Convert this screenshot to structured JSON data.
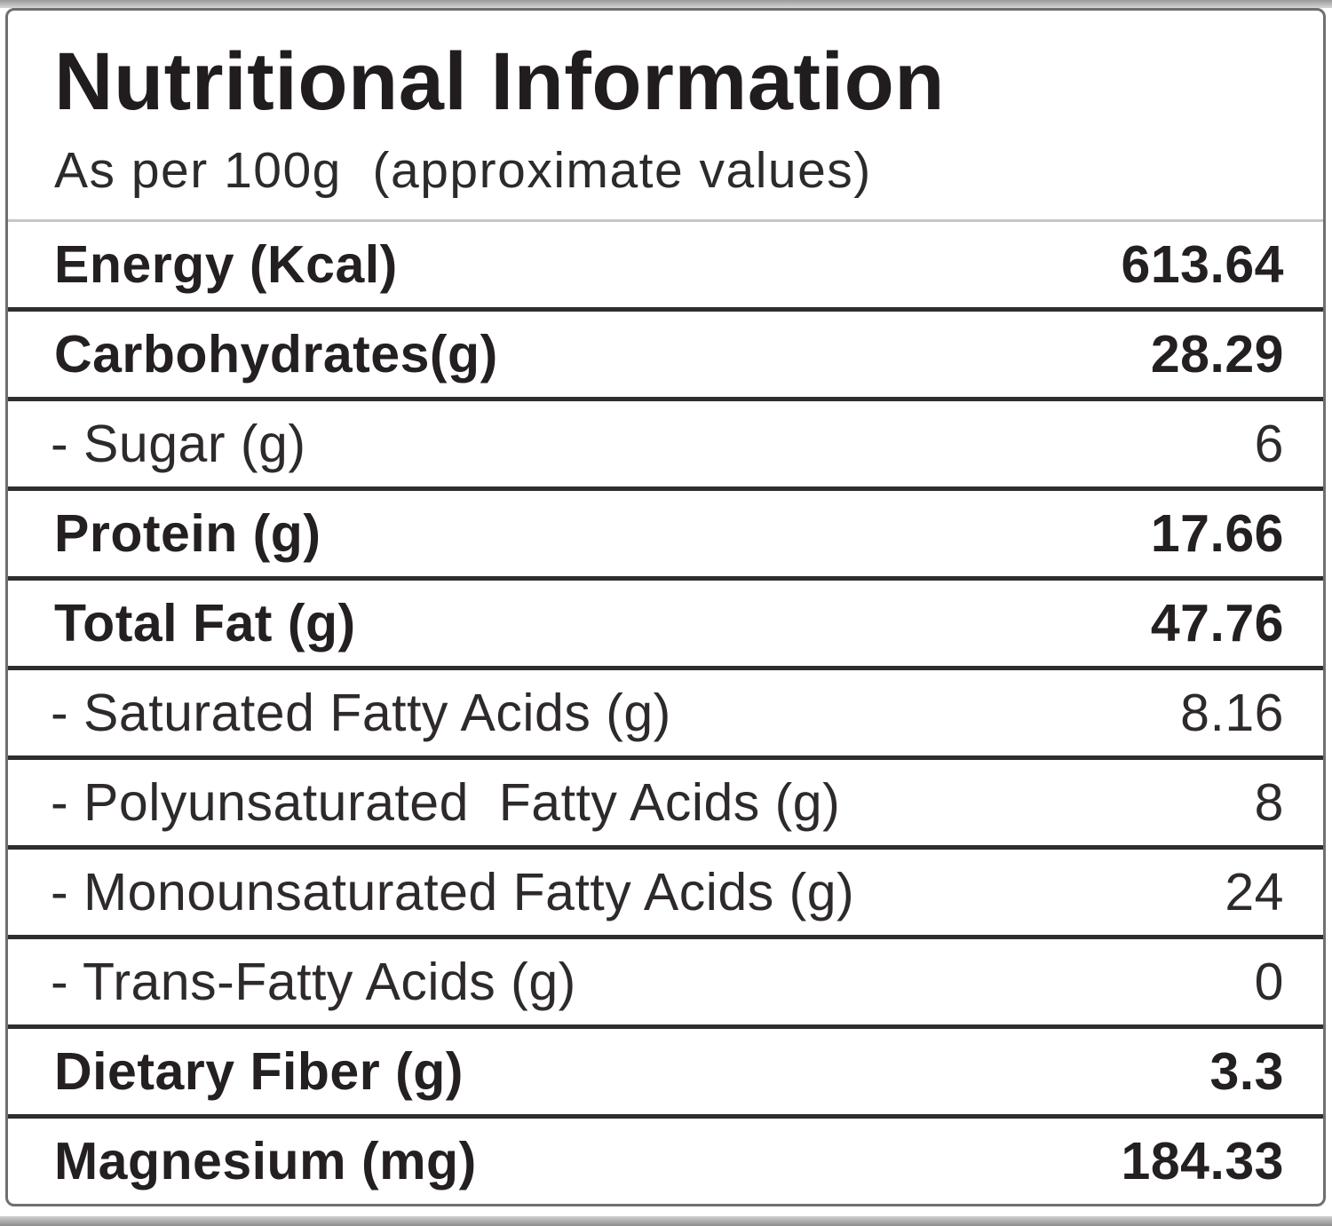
{
  "header": {
    "title": "Nutritional Information",
    "subtitle": "As per 100g  (approximate values)"
  },
  "table": {
    "rows": [
      {
        "label": "Energy (Kcal)",
        "value": "613.64",
        "style": "main"
      },
      {
        "label": "Carbohydrates(g)",
        "value": "28.29",
        "style": "main"
      },
      {
        "label": "- Sugar (g)",
        "value": "6",
        "style": "sub"
      },
      {
        "label": "Protein (g)",
        "value": "17.66",
        "style": "main"
      },
      {
        "label": "Total Fat (g)",
        "value": "47.76",
        "style": "main"
      },
      {
        "label": "- Saturated Fatty Acids (g)",
        "value": "8.16",
        "style": "sub"
      },
      {
        "label": "- Polyunsaturated  Fatty Acids (g)",
        "value": "8",
        "style": "sub"
      },
      {
        "label": "- Monounsaturated Fatty Acids (g)",
        "value": "24",
        "style": "sub"
      },
      {
        "label": "- Trans-Fatty Acids (g)",
        "value": "0",
        "style": "sub"
      },
      {
        "label": "Dietary Fiber (g)",
        "value": "3.3",
        "style": "main"
      },
      {
        "label": "Magnesium (mg)",
        "value": "184.33",
        "style": "main"
      }
    ]
  },
  "colors": {
    "text": "#211d1e",
    "row_divider": "#2e2e2e",
    "header_divider": "#c6c6c6",
    "outer_border": "#6f6f6f",
    "background": "#ffffff"
  }
}
